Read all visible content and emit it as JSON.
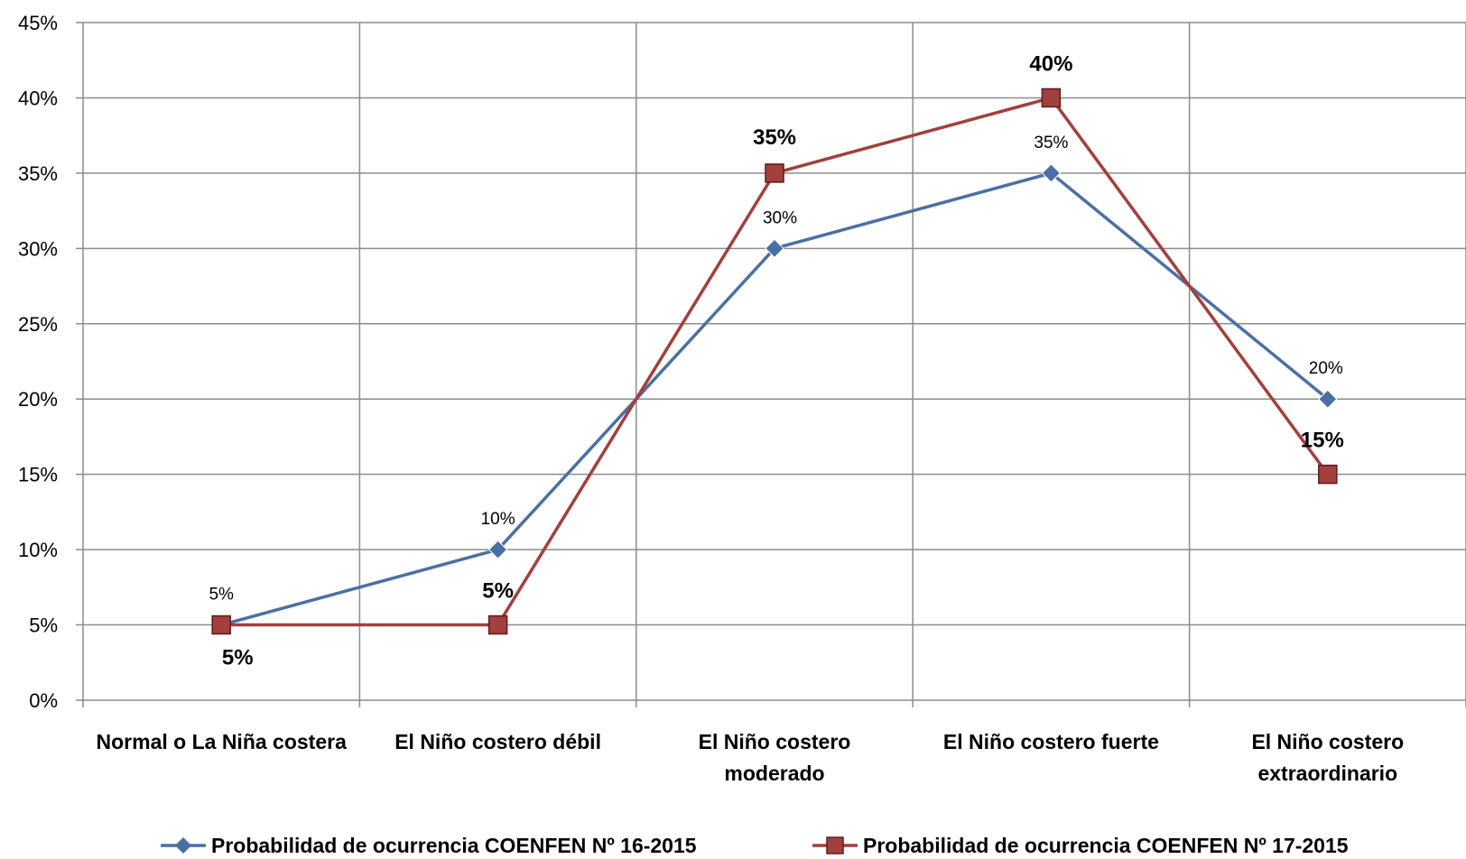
{
  "chart_data": {
    "type": "line",
    "categories": [
      [
        "Normal o La Niña costera"
      ],
      [
        "El Niño costero débil"
      ],
      [
        "El Niño costero",
        "moderado"
      ],
      [
        "El Niño costero fuerte"
      ],
      [
        "El Niño costero",
        "extraordinario"
      ]
    ],
    "y_ticks": [
      "0%",
      "5%",
      "10%",
      "15%",
      "20%",
      "25%",
      "30%",
      "35%",
      "40%",
      "45%"
    ],
    "ylim": [
      0,
      45
    ],
    "grid": true,
    "legend_position": "bottom",
    "series": [
      {
        "name": "Probabilidad de ocurrencia COENFEN Nº 16-2015",
        "color": "#4A6FA5",
        "marker": "diamond",
        "values": [
          5,
          10,
          30,
          35,
          20
        ],
        "labels": [
          "5%",
          "10%",
          "30%",
          "35%",
          "20%"
        ]
      },
      {
        "name": "Probabilidad de ocurrencia COENFEN Nº 17-2015",
        "color": "#A33F3C",
        "marker": "square",
        "values": [
          5,
          5,
          35,
          40,
          15
        ],
        "labels": [
          "5%",
          "5%",
          "35%",
          "40%",
          "15%"
        ]
      }
    ]
  }
}
